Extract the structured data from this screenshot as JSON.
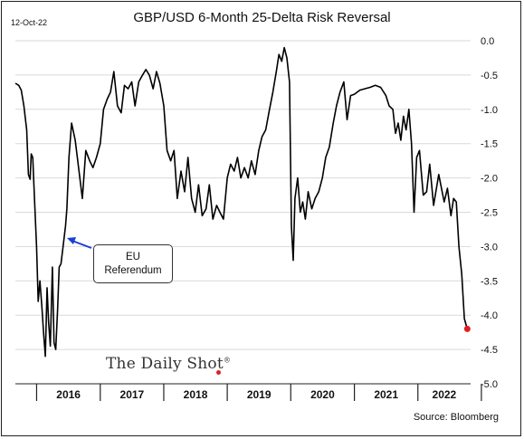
{
  "date_stamp": "12-Oct-22",
  "source": "Source: Bloomberg",
  "logo_text": "The Daily Shot",
  "logo_mark": "®",
  "chart_data": {
    "type": "line",
    "title": "GBP/USD 6-Month 25-Delta Risk Reversal",
    "xlabel": "",
    "ylabel": "",
    "ylim": [
      -5.0,
      0.0
    ],
    "y_ticks": [
      0.0,
      -0.5,
      -1.0,
      -1.5,
      -2.0,
      -2.5,
      -3.0,
      -3.5,
      -4.0,
      -4.5,
      -5.0
    ],
    "y_tick_labels": [
      "0.0",
      "-0.5",
      "-1.0",
      "-1.5",
      "-2.0",
      "-2.5",
      "-3.0",
      "-3.5",
      "-4.0",
      "-4.5",
      "-5.0"
    ],
    "y_axis_side": "right",
    "grid": "horizontal",
    "x_range": [
      "2015-09-01",
      "2022-10-31"
    ],
    "year_labels": [
      "2016",
      "2017",
      "2018",
      "2019",
      "2020",
      "2021",
      "2022"
    ],
    "line_color": "#000000",
    "last_point_color": "#e02020",
    "annotation": {
      "text_lines": [
        "EU",
        "Referendum"
      ],
      "arrow_color": "#1a3fd6",
      "points_to": [
        "2016-06-23",
        -2.9
      ]
    },
    "series": [
      {
        "values": [
          [
            "2015-09-01",
            -0.62
          ],
          [
            "2015-09-20",
            -0.65
          ],
          [
            "2015-10-05",
            -0.72
          ],
          [
            "2015-10-20",
            -0.95
          ],
          [
            "2015-11-05",
            -1.3
          ],
          [
            "2015-11-15",
            -1.95
          ],
          [
            "2015-11-25",
            -2.02
          ],
          [
            "2015-12-01",
            -1.65
          ],
          [
            "2015-12-10",
            -1.7
          ],
          [
            "2015-12-20",
            -2.3
          ],
          [
            "2016-01-01",
            -3.0
          ],
          [
            "2016-01-10",
            -3.8
          ],
          [
            "2016-01-20",
            -3.5
          ],
          [
            "2016-02-01",
            -3.9
          ],
          [
            "2016-02-10",
            -4.25
          ],
          [
            "2016-02-20",
            -4.6
          ],
          [
            "2016-03-01",
            -3.6
          ],
          [
            "2016-03-10",
            -4.1
          ],
          [
            "2016-03-20",
            -4.45
          ],
          [
            "2016-04-01",
            -3.3
          ],
          [
            "2016-04-10",
            -4.4
          ],
          [
            "2016-04-20",
            -4.5
          ],
          [
            "2016-05-01",
            -3.9
          ],
          [
            "2016-05-10",
            -3.3
          ],
          [
            "2016-05-20",
            -3.25
          ],
          [
            "2016-06-01",
            -3.0
          ],
          [
            "2016-06-15",
            -2.7
          ],
          [
            "2016-06-23",
            -2.45
          ],
          [
            "2016-07-05",
            -1.7
          ],
          [
            "2016-07-20",
            -1.2
          ],
          [
            "2016-08-10",
            -1.45
          ],
          [
            "2016-09-01",
            -1.9
          ],
          [
            "2016-09-20",
            -2.3
          ],
          [
            "2016-10-10",
            -1.6
          ],
          [
            "2016-11-01",
            -1.75
          ],
          [
            "2016-11-20",
            -1.85
          ],
          [
            "2016-12-10",
            -1.7
          ],
          [
            "2017-01-01",
            -1.5
          ],
          [
            "2017-01-20",
            -1.0
          ],
          [
            "2017-02-10",
            -0.85
          ],
          [
            "2017-03-01",
            -0.75
          ],
          [
            "2017-03-20",
            -0.45
          ],
          [
            "2017-04-10",
            -0.95
          ],
          [
            "2017-05-01",
            -1.05
          ],
          [
            "2017-05-20",
            -0.65
          ],
          [
            "2017-06-10",
            -0.7
          ],
          [
            "2017-07-01",
            -0.6
          ],
          [
            "2017-07-20",
            -0.95
          ],
          [
            "2017-08-10",
            -0.6
          ],
          [
            "2017-09-01",
            -0.5
          ],
          [
            "2017-09-20",
            -0.42
          ],
          [
            "2017-10-10",
            -0.5
          ],
          [
            "2017-11-01",
            -0.7
          ],
          [
            "2017-11-20",
            -0.45
          ],
          [
            "2017-12-10",
            -0.62
          ],
          [
            "2018-01-01",
            -0.95
          ],
          [
            "2018-01-20",
            -1.6
          ],
          [
            "2018-02-10",
            -1.75
          ],
          [
            "2018-03-01",
            -1.6
          ],
          [
            "2018-03-20",
            -2.3
          ],
          [
            "2018-04-10",
            -1.9
          ],
          [
            "2018-05-01",
            -2.2
          ],
          [
            "2018-05-20",
            -1.7
          ],
          [
            "2018-06-10",
            -2.3
          ],
          [
            "2018-07-01",
            -2.5
          ],
          [
            "2018-07-20",
            -2.1
          ],
          [
            "2018-08-10",
            -2.55
          ],
          [
            "2018-09-01",
            -2.45
          ],
          [
            "2018-09-20",
            -2.1
          ],
          [
            "2018-10-10",
            -2.6
          ],
          [
            "2018-11-01",
            -2.4
          ],
          [
            "2018-11-20",
            -2.5
          ],
          [
            "2018-12-10",
            -2.6
          ],
          [
            "2019-01-01",
            -2.0
          ],
          [
            "2019-01-20",
            -1.8
          ],
          [
            "2019-02-10",
            -1.9
          ],
          [
            "2019-03-01",
            -1.7
          ],
          [
            "2019-03-20",
            -2.0
          ],
          [
            "2019-04-10",
            -1.85
          ],
          [
            "2019-05-01",
            -2.0
          ],
          [
            "2019-05-20",
            -1.75
          ],
          [
            "2019-06-10",
            -1.95
          ],
          [
            "2019-07-01",
            -1.6
          ],
          [
            "2019-07-20",
            -1.4
          ],
          [
            "2019-08-10",
            -1.3
          ],
          [
            "2019-09-01",
            -1.0
          ],
          [
            "2019-09-20",
            -0.75
          ],
          [
            "2019-10-10",
            -0.45
          ],
          [
            "2019-10-25",
            -0.2
          ],
          [
            "2019-11-10",
            -0.3
          ],
          [
            "2019-11-25",
            -0.1
          ],
          [
            "2019-12-10",
            -0.25
          ],
          [
            "2019-12-25",
            -0.6
          ],
          [
            "2020-01-05",
            -2.7
          ],
          [
            "2020-01-15",
            -3.2
          ],
          [
            "2020-01-25",
            -2.3
          ],
          [
            "2020-02-10",
            -2.0
          ],
          [
            "2020-02-25",
            -2.5
          ],
          [
            "2020-03-10",
            -2.35
          ],
          [
            "2020-03-25",
            -2.6
          ],
          [
            "2020-04-10",
            -2.2
          ],
          [
            "2020-05-01",
            -2.45
          ],
          [
            "2020-05-20",
            -2.3
          ],
          [
            "2020-06-10",
            -2.2
          ],
          [
            "2020-07-01",
            -2.0
          ],
          [
            "2020-07-20",
            -1.7
          ],
          [
            "2020-08-10",
            -1.55
          ],
          [
            "2020-09-01",
            -1.2
          ],
          [
            "2020-09-20",
            -0.95
          ],
          [
            "2020-10-10",
            -0.75
          ],
          [
            "2020-11-01",
            -0.6
          ],
          [
            "2020-11-20",
            -1.15
          ],
          [
            "2020-12-10",
            -0.8
          ],
          [
            "2021-01-01",
            -0.78
          ],
          [
            "2021-02-01",
            -0.72
          ],
          [
            "2021-03-01",
            -0.7
          ],
          [
            "2021-04-01",
            -0.68
          ],
          [
            "2021-05-01",
            -0.65
          ],
          [
            "2021-06-01",
            -0.68
          ],
          [
            "2021-07-01",
            -0.8
          ],
          [
            "2021-07-20",
            -0.95
          ],
          [
            "2021-08-10",
            -1.0
          ],
          [
            "2021-08-25",
            -1.35
          ],
          [
            "2021-09-10",
            -1.2
          ],
          [
            "2021-09-25",
            -1.45
          ],
          [
            "2021-10-10",
            -1.1
          ],
          [
            "2021-10-25",
            -1.3
          ],
          [
            "2021-11-10",
            -1.0
          ],
          [
            "2021-11-25",
            -1.5
          ],
          [
            "2021-12-10",
            -2.5
          ],
          [
            "2021-12-25",
            -1.7
          ],
          [
            "2022-01-10",
            -1.6
          ],
          [
            "2022-02-01",
            -2.25
          ],
          [
            "2022-02-20",
            -2.2
          ],
          [
            "2022-03-10",
            -1.8
          ],
          [
            "2022-04-01",
            -2.4
          ],
          [
            "2022-05-01",
            -1.95
          ],
          [
            "2022-06-01",
            -2.35
          ],
          [
            "2022-06-20",
            -2.15
          ],
          [
            "2022-07-10",
            -2.55
          ],
          [
            "2022-07-25",
            -2.3
          ],
          [
            "2022-08-10",
            -2.35
          ],
          [
            "2022-08-25",
            -3.0
          ],
          [
            "2022-09-10",
            -3.4
          ],
          [
            "2022-09-25",
            -4.05
          ],
          [
            "2022-10-12",
            -4.2
          ]
        ]
      }
    ]
  }
}
